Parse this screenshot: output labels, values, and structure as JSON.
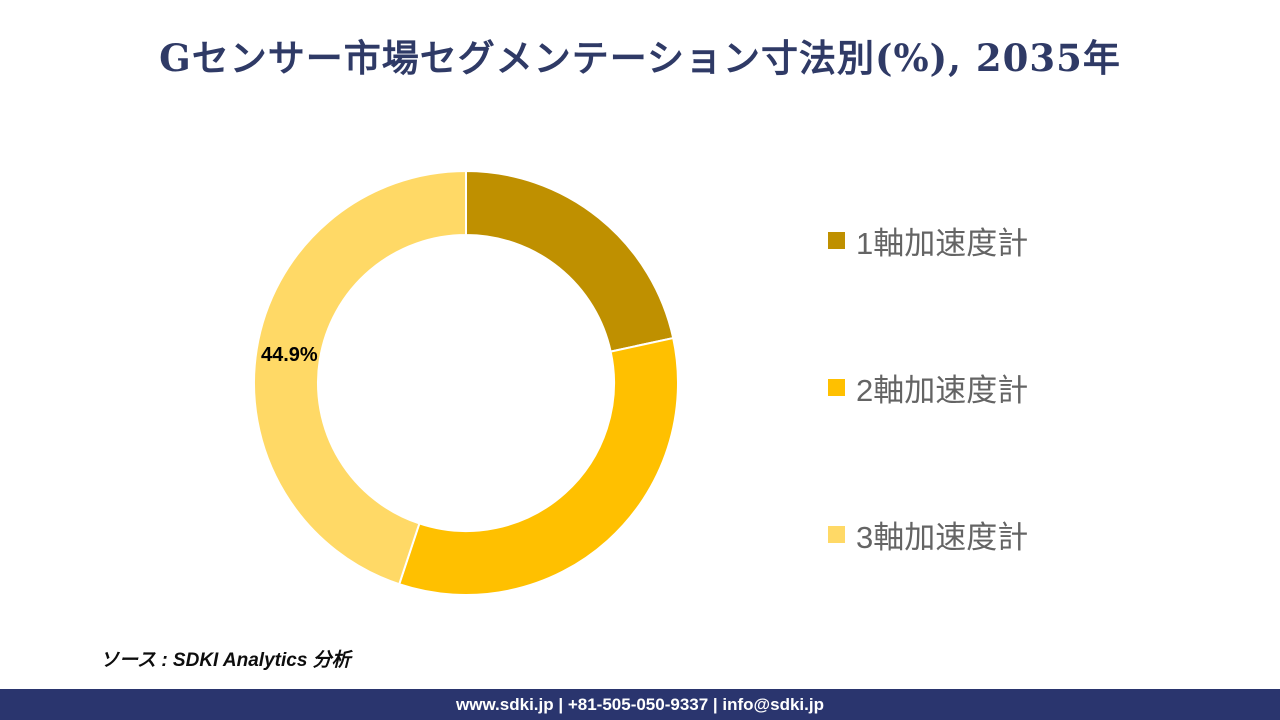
{
  "title": "Gセンサー市場セグメンテーション寸法別(%), 2035年",
  "chart_data": {
    "type": "pie",
    "subtype": "donut",
    "title": "Gセンサー市場セグメンテーション寸法別(%), 2035年",
    "categories": [
      "1軸加速度計",
      "2軸加速度計",
      "3軸加速度計"
    ],
    "values": [
      21.6,
      33.5,
      44.9
    ],
    "colors": [
      "#BF9000",
      "#FFC000",
      "#FFD966"
    ],
    "data_labels": [
      "",
      "",
      "44.9%"
    ],
    "visible_label": "44.9%",
    "inner_radius_ratio": 0.7,
    "start_angle_deg": 0,
    "direction": "clockwise",
    "legend_position": "right"
  },
  "legend": {
    "items": [
      {
        "label": "1軸加速度計",
        "color": "#BF9000"
      },
      {
        "label": "2軸加速度計",
        "color": "#FFC000"
      },
      {
        "label": "3軸加速度計",
        "color": "#FFD966"
      }
    ]
  },
  "source_note": "ソース : SDKI Analytics 分析",
  "footer": {
    "text": "www.sdki.jp | +81-505-050-9337 | info@sdki.jp",
    "background": "#2a356e"
  },
  "palette": {
    "title_navy": "#2f3a66",
    "footer_navy": "#2a356e",
    "legend_text_gray": "#646464",
    "label_black": "#000000"
  }
}
